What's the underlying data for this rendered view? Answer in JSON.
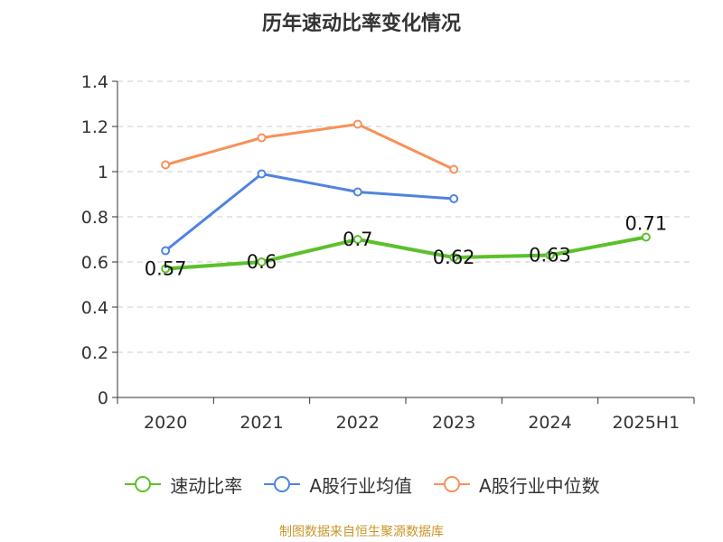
{
  "title": "历年速动比率变化情况",
  "source_note": "制图数据来自恒生聚源数据库",
  "colors": {
    "series_1": "#5cc02b",
    "series_2": "#4f83e0",
    "series_3": "#f7915a",
    "axis": "#333333",
    "grid": "#cccccc",
    "source": "#c8962a"
  },
  "chart_data": {
    "type": "line",
    "title": "历年速动比率变化情况",
    "categories": [
      "2020",
      "2021",
      "2022",
      "2023",
      "2024",
      "2025H1"
    ],
    "y_ticks": [
      "0",
      "0.2",
      "0.4",
      "0.6",
      "0.8",
      "1",
      "1.2",
      "1.4"
    ],
    "ylim": [
      0,
      1.4
    ],
    "grid": "horizontal-dashed",
    "legend_position": "bottom",
    "series": [
      {
        "name": "速动比率",
        "color": "#5cc02b",
        "values": [
          0.57,
          0.6,
          0.7,
          0.62,
          0.63,
          0.71
        ],
        "labels": [
          "0.57",
          "0.6",
          "0.7",
          "0.62",
          "0.63",
          "0.71"
        ]
      },
      {
        "name": "A股行业均值",
        "color": "#4f83e0",
        "values": [
          0.65,
          0.99,
          0.91,
          0.88,
          null,
          null
        ]
      },
      {
        "name": "A股行业中位数",
        "color": "#f7915a",
        "values": [
          1.03,
          1.15,
          1.21,
          1.01,
          null,
          null
        ]
      }
    ]
  }
}
